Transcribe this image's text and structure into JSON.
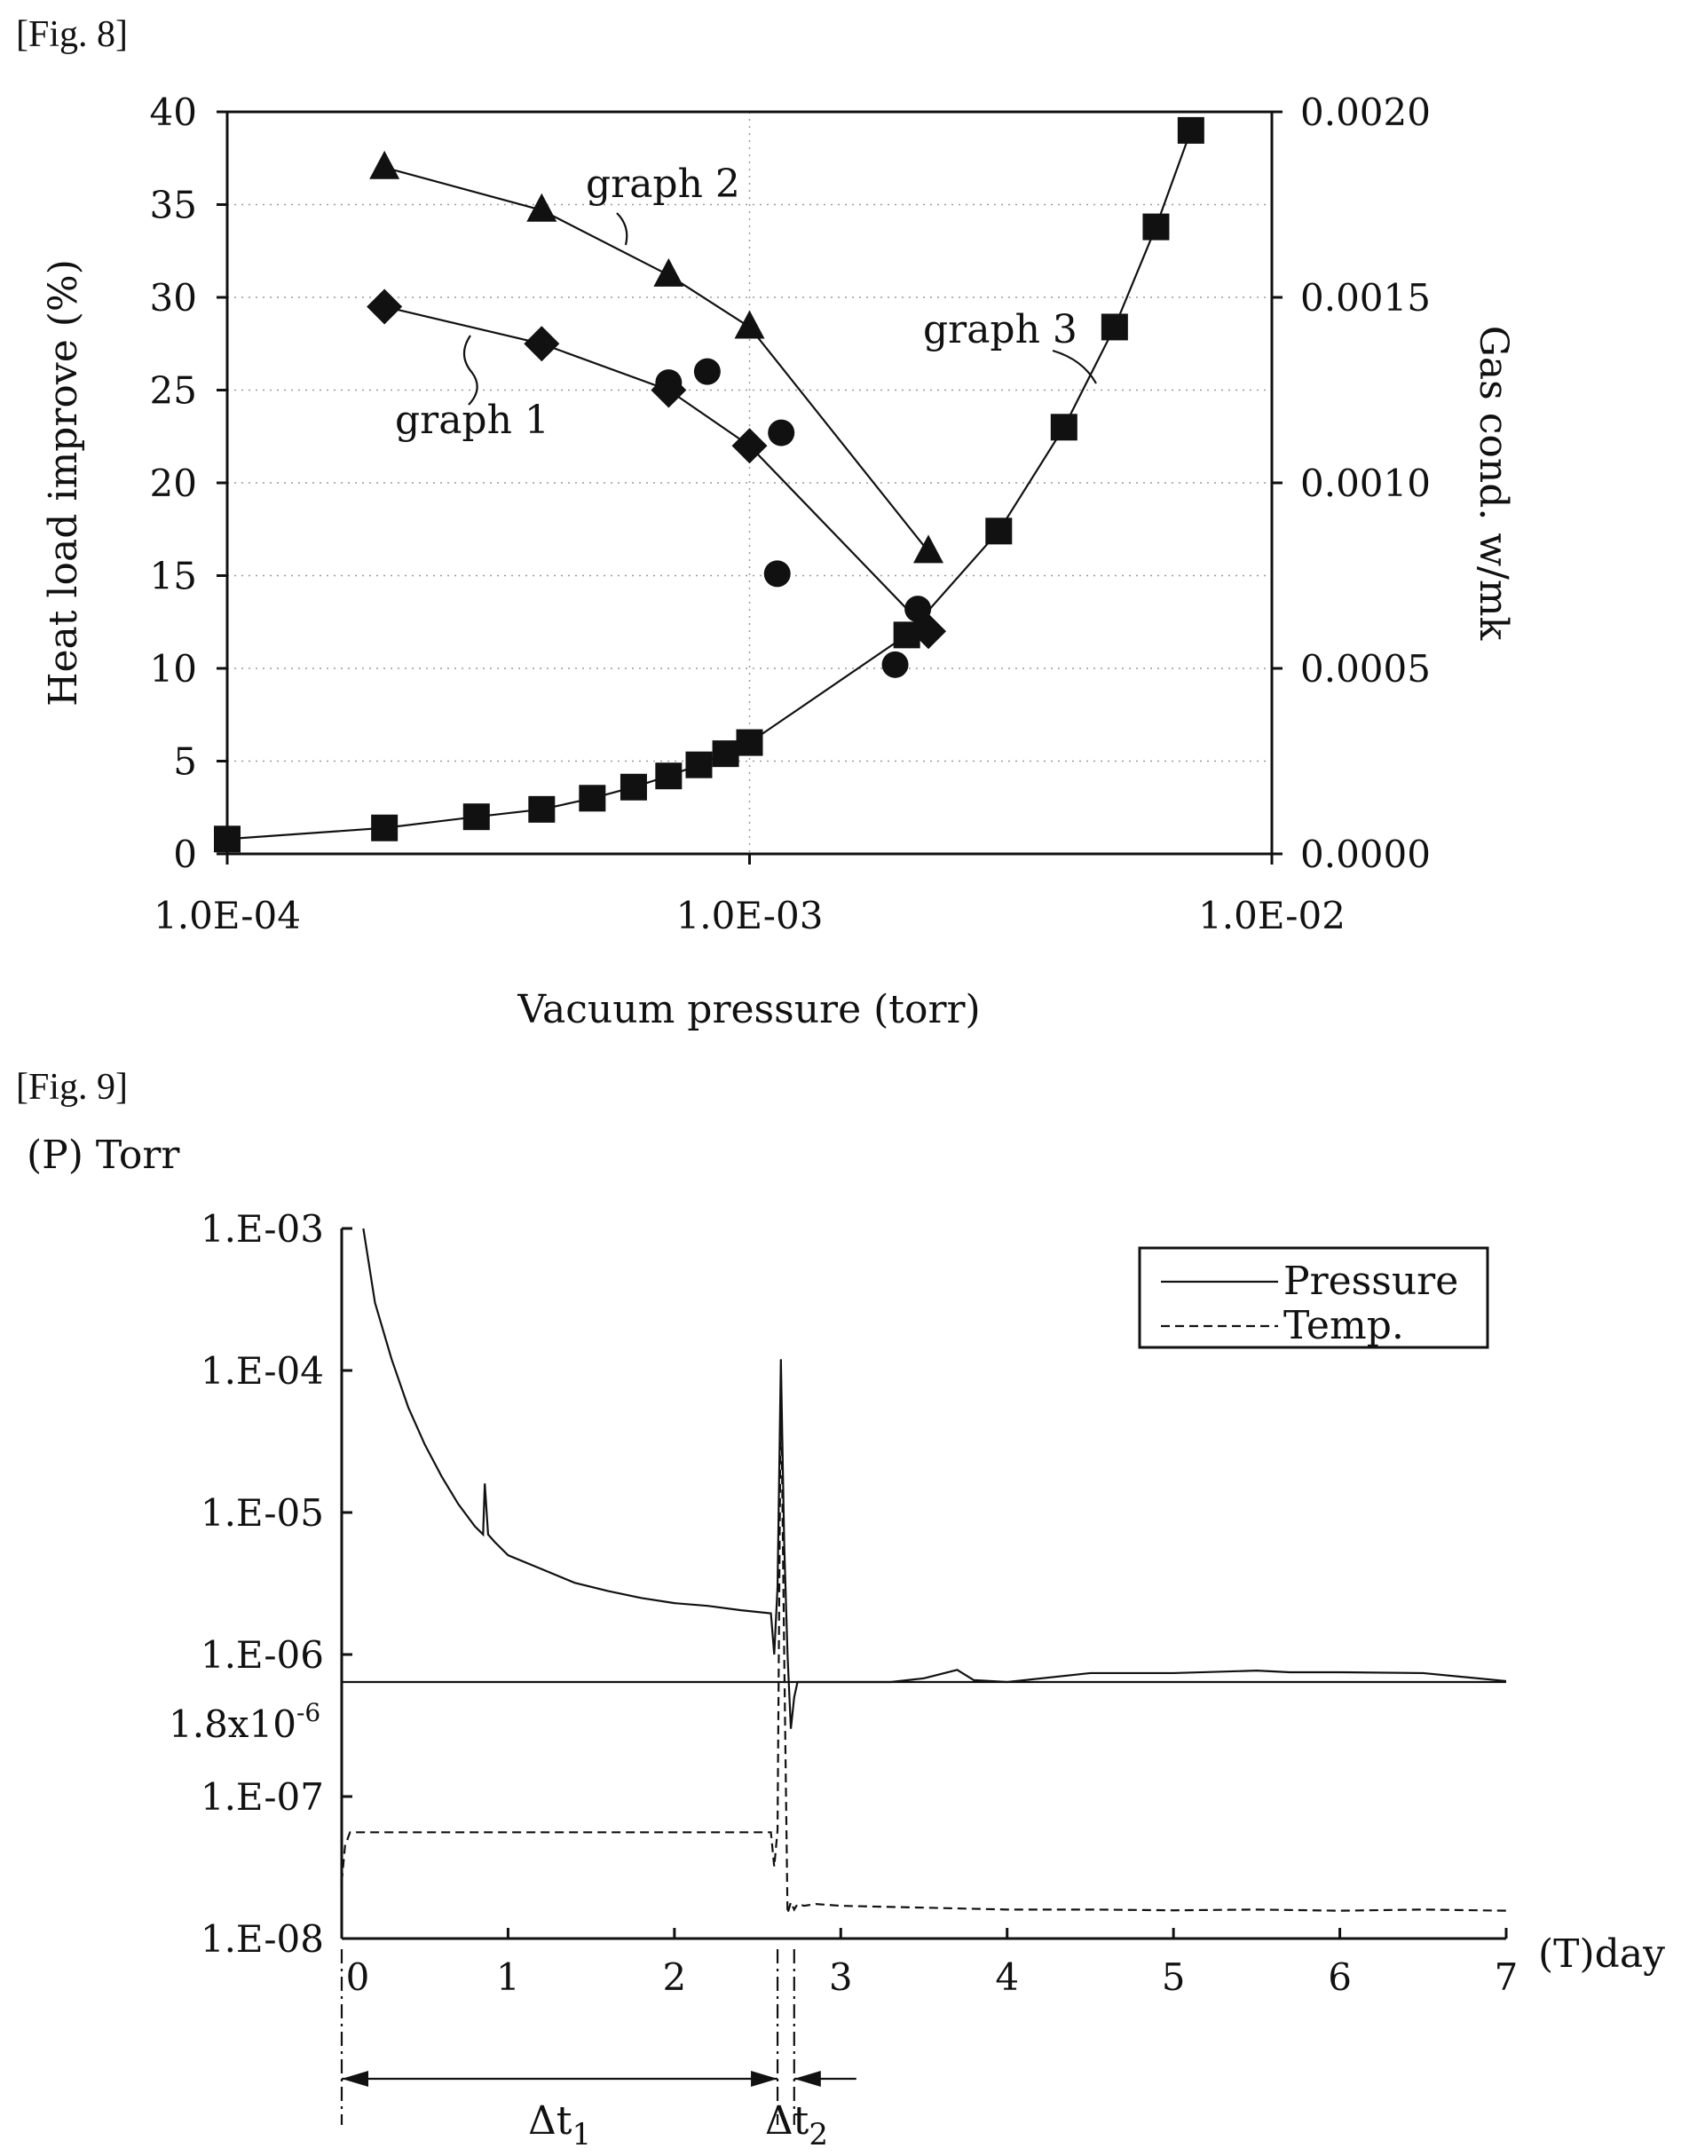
{
  "fig8": {
    "caption": "[Fig. 8]",
    "chart_data": {
      "type": "scatter",
      "x_scale": "log",
      "xlim": [
        0.0001,
        0.01
      ],
      "x_ticks": [
        "1.0E-04",
        "1.0E-03",
        "1.0E-02"
      ],
      "xlabel": "Vacuum pressure (torr)",
      "ylim": [
        0,
        40
      ],
      "y_ticks": [
        "0",
        "5",
        "10",
        "15",
        "20",
        "25",
        "30",
        "35",
        "40"
      ],
      "ylabel": "Heat load improve (%)",
      "y2lim": [
        0,
        0.002
      ],
      "y2_ticks": [
        "0.0000",
        "0.0005",
        "0.0010",
        "0.0015",
        "0.0020"
      ],
      "y2label": "Gas cond. w/mk",
      "grid": true,
      "series": [
        {
          "name": "graph 1",
          "marker": "diamond",
          "axis": "left",
          "connected": true,
          "x": [
            0.0002,
            0.0004,
            0.0007,
            0.001,
            0.0022
          ],
          "y": [
            29.5,
            27.5,
            25,
            22,
            12
          ]
        },
        {
          "name": "graph 2",
          "marker": "triangle",
          "axis": "left",
          "connected": true,
          "x": [
            0.0002,
            0.0004,
            0.0007,
            0.001,
            0.0022
          ],
          "y": [
            37,
            34.7,
            31.2,
            28.4,
            16.3
          ]
        },
        {
          "name": "graph 3",
          "marker": "square",
          "axis": "right",
          "connected": true,
          "x": [
            0.0001,
            0.0002,
            0.0003,
            0.0004,
            0.0005,
            0.0006,
            0.0007,
            0.0008,
            0.0009,
            0.001,
            0.002,
            0.003,
            0.004,
            0.005,
            0.006,
            0.007
          ],
          "y": [
            4e-05,
            7e-05,
            0.0001,
            0.00012,
            0.00015,
            0.00018,
            0.00021,
            0.00024,
            0.00027,
            0.0003,
            0.00059,
            0.00087,
            0.00115,
            0.00142,
            0.00169,
            0.00195
          ]
        },
        {
          "name": "",
          "marker": "circle",
          "axis": "left",
          "connected": false,
          "x": [
            0.0007,
            0.00083,
            0.00115,
            0.00113,
            0.0019,
            0.0021
          ],
          "y": [
            25.4,
            26,
            22.7,
            15.1,
            10.2,
            13.2
          ]
        }
      ],
      "annotations": [
        "graph 1",
        "graph 2",
        "graph 3"
      ]
    }
  },
  "fig9": {
    "caption": "[Fig. 9]",
    "chart_data": {
      "type": "line",
      "xlim": [
        0,
        7
      ],
      "x_ticks": [
        "0",
        "1",
        "2",
        "3",
        "4",
        "5",
        "6",
        "7"
      ],
      "xlabel": "(T)day",
      "y_scale": "log",
      "ylim": [
        1e-08,
        0.001
      ],
      "y_ticks": [
        "1.E-08",
        "1.E-07",
        "1.E-06",
        "1.E-05",
        "1.E-04",
        "1.E-03"
      ],
      "ylabel": "(P) Torr",
      "reference_line": {
        "label_base": "1.8x10",
        "label_exp": "-6",
        "value": 6.4e-07
      },
      "legend": {
        "position": "top-right",
        "entries": [
          "Pressure",
          "Temp."
        ]
      },
      "series": [
        {
          "name": "Pressure",
          "style": "solid",
          "x": [
            0.13,
            0.2,
            0.3,
            0.4,
            0.5,
            0.6,
            0.7,
            0.8,
            0.85,
            0.86,
            0.88,
            0.92,
            1.0,
            1.2,
            1.4,
            1.6,
            1.8,
            2.0,
            2.2,
            2.4,
            2.58,
            2.6,
            2.62,
            2.64,
            2.66,
            2.68,
            2.7,
            2.72,
            2.74,
            2.78,
            2.85,
            2.95,
            3.1,
            3.3,
            3.5,
            3.7,
            3.8,
            4.0,
            4.5,
            5.0,
            5.5,
            5.7,
            6.0,
            6.5,
            7.0
          ],
          "y": [
            0.001,
            0.0003,
            0.00012,
            5.5e-05,
            3e-05,
            1.8e-05,
            1.15e-05,
            8e-06,
            7e-06,
            1.6e-05,
            7e-06,
            6.2e-06,
            5e-06,
            4e-06,
            3.2e-06,
            2.8e-06,
            2.5e-06,
            2.3e-06,
            2.2e-06,
            2.05e-06,
            1.95e-06,
            1e-06,
            3e-06,
            0.00012,
            6e-06,
            1e-06,
            3e-07,
            5e-07,
            6.4e-07,
            6.4e-07,
            6.4e-07,
            6.4e-07,
            6.4e-07,
            6.4e-07,
            6.8e-07,
            7.8e-07,
            6.6e-07,
            6.4e-07,
            7.4e-07,
            7.4e-07,
            7.7e-07,
            7.5e-07,
            7.5e-07,
            7.4e-07,
            6.5e-07
          ]
        },
        {
          "name": "Temp.",
          "style": "dashed",
          "x": [
            0.0,
            0.02,
            0.05,
            2.58,
            2.6,
            2.62,
            2.64,
            2.66,
            2.68,
            2.7,
            2.72,
            2.74,
            2.78,
            2.85,
            3.0,
            3.5,
            4.0,
            4.5,
            5.0,
            5.5,
            6.0,
            6.5,
            7.0
          ],
          "y": [
            2.5e-08,
            4.5e-08,
            5.6e-08,
            5.6e-08,
            3.2e-08,
            5.8e-08,
            0.0001,
            1e-06,
            1.5e-08,
            1.8e-08,
            1.6e-08,
            1.75e-08,
            1.7e-08,
            1.75e-08,
            1.7e-08,
            1.65e-08,
            1.6e-08,
            1.6e-08,
            1.58e-08,
            1.6e-08,
            1.57e-08,
            1.6e-08,
            1.57e-08
          ]
        }
      ],
      "intervals": [
        {
          "label_base": "Δt",
          "label_sub": "1",
          "x": [
            0,
            2.62
          ]
        },
        {
          "label_base": "Δt",
          "label_sub": "2",
          "x": [
            2.62,
            2.72
          ]
        }
      ]
    }
  }
}
